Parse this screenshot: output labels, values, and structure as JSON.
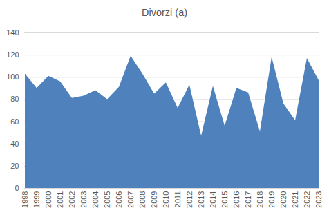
{
  "chart_data": {
    "type": "area",
    "title": "Divorzi (a)",
    "categories": [
      "1998",
      "1999",
      "2000",
      "2001",
      "2002",
      "2003",
      "2004",
      "2005",
      "2006",
      "2007",
      "2008",
      "2009",
      "2010",
      "2011",
      "2012",
      "2013",
      "2014",
      "2015",
      "2016",
      "2017",
      "2018",
      "2019",
      "2020",
      "2021",
      "2022",
      "2023"
    ],
    "values": [
      103,
      90,
      101,
      96,
      81,
      83,
      88,
      80,
      91,
      119,
      103,
      85,
      95,
      72,
      93,
      47,
      92,
      56,
      90,
      86,
      51,
      118,
      76,
      61,
      117,
      97
    ],
    "color": "#4f81bd",
    "ylim": [
      0,
      140
    ],
    "yticks": [
      0,
      20,
      40,
      60,
      80,
      100,
      120,
      140
    ],
    "grid": true
  }
}
